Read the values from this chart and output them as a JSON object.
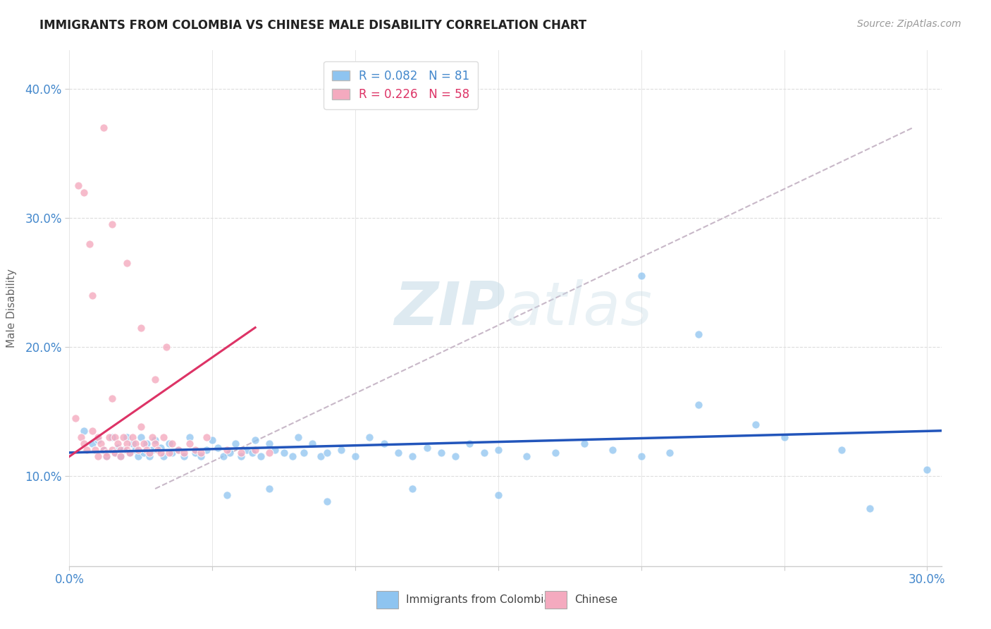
{
  "title": "IMMIGRANTS FROM COLOMBIA VS CHINESE MALE DISABILITY CORRELATION CHART",
  "source": "Source: ZipAtlas.com",
  "ylabel": "Male Disability",
  "xlim": [
    0.0,
    0.305
  ],
  "ylim": [
    0.03,
    0.43
  ],
  "xticks": [
    0.0,
    0.05,
    0.1,
    0.15,
    0.2,
    0.25,
    0.3
  ],
  "xtick_labels": [
    "0.0%",
    "",
    "",
    "",
    "",
    "",
    "30.0%"
  ],
  "yticks": [
    0.1,
    0.2,
    0.3,
    0.4
  ],
  "ytick_labels": [
    "10.0%",
    "20.0%",
    "30.0%",
    "40.0%"
  ],
  "legend1_label": "R = 0.082   N = 81",
  "legend2_label": "R = 0.226   N = 58",
  "color_blue": "#8EC4F0",
  "color_pink": "#F4AABF",
  "color_blue_line": "#2255BB",
  "color_pink_line": "#DD3366",
  "color_dashed": "#C8B8C8",
  "title_color": "#222222",
  "axis_color": "#4488CC",
  "watermark_color": "#C8DDE8",
  "blue_scatter_x": [
    0.005,
    0.008,
    0.01,
    0.012,
    0.013,
    0.015,
    0.016,
    0.017,
    0.018,
    0.019,
    0.02,
    0.021,
    0.022,
    0.023,
    0.024,
    0.025,
    0.026,
    0.027,
    0.028,
    0.029,
    0.03,
    0.032,
    0.033,
    0.035,
    0.036,
    0.038,
    0.04,
    0.042,
    0.044,
    0.046,
    0.048,
    0.05,
    0.052,
    0.054,
    0.056,
    0.058,
    0.06,
    0.062,
    0.064,
    0.065,
    0.067,
    0.07,
    0.072,
    0.075,
    0.078,
    0.08,
    0.082,
    0.085,
    0.088,
    0.09,
    0.095,
    0.1,
    0.105,
    0.11,
    0.115,
    0.12,
    0.125,
    0.13,
    0.135,
    0.14,
    0.145,
    0.15,
    0.16,
    0.17,
    0.18,
    0.19,
    0.2,
    0.21,
    0.22,
    0.24,
    0.25,
    0.27,
    0.28,
    0.3,
    0.055,
    0.07,
    0.09,
    0.12,
    0.15,
    0.2,
    0.22
  ],
  "blue_scatter_y": [
    0.135,
    0.125,
    0.128,
    0.12,
    0.115,
    0.13,
    0.118,
    0.122,
    0.115,
    0.12,
    0.13,
    0.118,
    0.125,
    0.12,
    0.115,
    0.13,
    0.118,
    0.125,
    0.115,
    0.12,
    0.128,
    0.122,
    0.115,
    0.125,
    0.118,
    0.12,
    0.115,
    0.13,
    0.118,
    0.115,
    0.12,
    0.128,
    0.122,
    0.115,
    0.118,
    0.125,
    0.115,
    0.12,
    0.118,
    0.128,
    0.115,
    0.125,
    0.12,
    0.118,
    0.115,
    0.13,
    0.118,
    0.125,
    0.115,
    0.118,
    0.12,
    0.115,
    0.13,
    0.125,
    0.118,
    0.115,
    0.122,
    0.118,
    0.115,
    0.125,
    0.118,
    0.12,
    0.115,
    0.118,
    0.125,
    0.12,
    0.115,
    0.118,
    0.155,
    0.14,
    0.13,
    0.12,
    0.075,
    0.105,
    0.085,
    0.09,
    0.08,
    0.09,
    0.085,
    0.255,
    0.21
  ],
  "pink_scatter_x": [
    0.002,
    0.004,
    0.005,
    0.006,
    0.007,
    0.008,
    0.009,
    0.01,
    0.01,
    0.011,
    0.012,
    0.013,
    0.013,
    0.014,
    0.015,
    0.015,
    0.016,
    0.016,
    0.017,
    0.018,
    0.018,
    0.019,
    0.02,
    0.02,
    0.021,
    0.022,
    0.023,
    0.024,
    0.025,
    0.026,
    0.027,
    0.028,
    0.029,
    0.03,
    0.031,
    0.032,
    0.033,
    0.034,
    0.035,
    0.036,
    0.038,
    0.04,
    0.042,
    0.044,
    0.046,
    0.048,
    0.055,
    0.06,
    0.065,
    0.07,
    0.003,
    0.005,
    0.008,
    0.012,
    0.015,
    0.02,
    0.025,
    0.03
  ],
  "pink_scatter_y": [
    0.145,
    0.13,
    0.125,
    0.12,
    0.28,
    0.135,
    0.12,
    0.115,
    0.13,
    0.125,
    0.12,
    0.118,
    0.115,
    0.13,
    0.16,
    0.12,
    0.118,
    0.13,
    0.125,
    0.12,
    0.115,
    0.13,
    0.125,
    0.12,
    0.118,
    0.13,
    0.125,
    0.12,
    0.138,
    0.125,
    0.12,
    0.118,
    0.13,
    0.125,
    0.12,
    0.118,
    0.13,
    0.2,
    0.118,
    0.125,
    0.12,
    0.118,
    0.125,
    0.12,
    0.118,
    0.13,
    0.12,
    0.118,
    0.12,
    0.118,
    0.325,
    0.32,
    0.24,
    0.37,
    0.295,
    0.265,
    0.215,
    0.175
  ],
  "blue_line_x": [
    0.0,
    0.305
  ],
  "blue_line_y": [
    0.118,
    0.135
  ],
  "pink_line_x": [
    0.0,
    0.065
  ],
  "pink_line_y": [
    0.115,
    0.215
  ],
  "dashed_line_x": [
    0.03,
    0.295
  ],
  "dashed_line_y": [
    0.09,
    0.37
  ]
}
